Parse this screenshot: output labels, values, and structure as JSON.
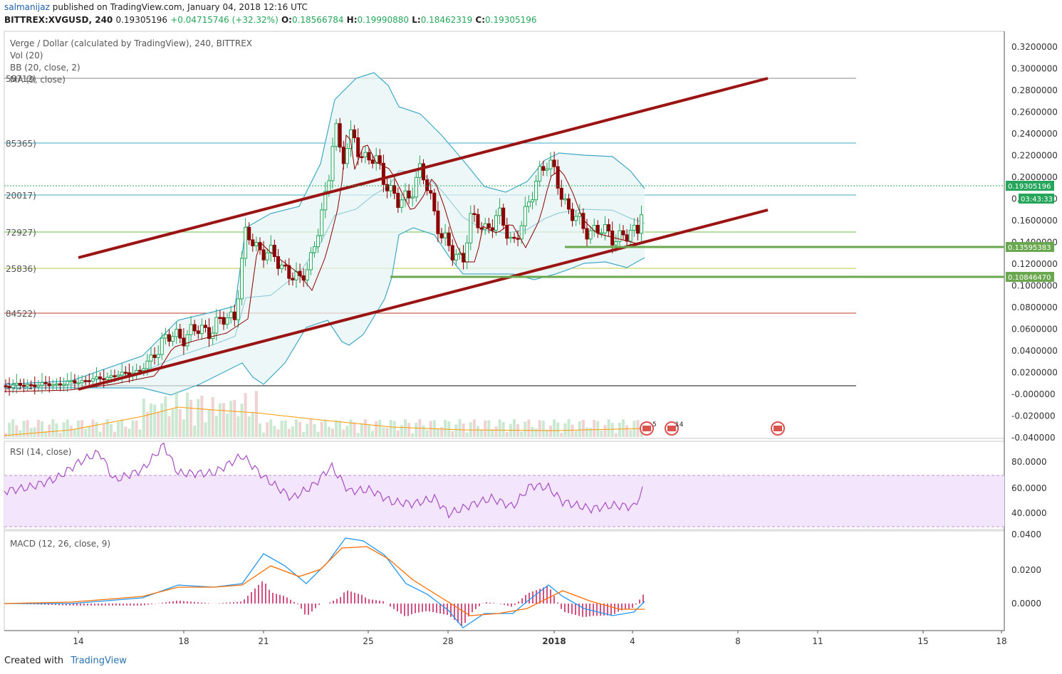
{
  "header": {
    "user": "salmanijaz",
    "published": "published on TradingView.com, January 04, 2018 12:16 UTC",
    "symbol": "BITTREX:XVGUSD, 240",
    "price": "0.19305196",
    "change": "+0.04715746 (+32.32%)",
    "o_label": "O:",
    "o": "0.18566784",
    "h_label": "H:",
    "h": "0.19990880",
    "l_label": "L:",
    "l": "0.18462319",
    "c_label": "C:",
    "c": "0.19305196"
  },
  "legend": {
    "title": "Verge / Dollar (calculated by TradingView), 240, BITTREX",
    "vol": "Vol (20)",
    "bb": "BB (20, close, 2)",
    "ma": "MA (9, close)"
  },
  "fib_labels": [
    "55712)",
    "85365)",
    "20017)",
    "72927)",
    "25836)",
    "84522)",
    "90341)"
  ],
  "price_axis": [
    "0.3200000",
    "0.3000000",
    "0.2800000",
    "0.2600000",
    "0.2400000",
    "0.2200000",
    "0.2000000",
    "0.1800000",
    "0.1600000",
    "0.1400000",
    "0.1200000",
    "0.1000000",
    "0.0800000",
    "0.0600000",
    "0.0400000",
    "0.0200000",
    "-0.000000",
    "-0.020000",
    "-0.040000"
  ],
  "price_tags": {
    "current": "0.19305196",
    "countdown": "03:43:33",
    "support1": "0.13595383",
    "support2": "0.10846470"
  },
  "rsi": {
    "title": "RSI (14, close)",
    "axis": [
      "80.0000",
      "60.0000",
      "40.0000"
    ]
  },
  "macd": {
    "title": "MACD (12, 26, close, 9)",
    "axis": [
      "0.0400",
      "0.0200",
      "0.0000"
    ]
  },
  "time_axis": [
    "14",
    "18",
    "21",
    "25",
    "28",
    "2018",
    "4",
    "8",
    "11",
    "15",
    "18"
  ],
  "events": [
    "5",
    "14"
  ],
  "footer": {
    "created": "Created with",
    "brand": "TradingView"
  },
  "colors": {
    "up": "#26a65b",
    "down": "#8b0000",
    "channel": "#9b1414",
    "bb": "#3fa9c6",
    "ma": "#8b0000",
    "rsi": "#a64dc4",
    "macd": "#2196f3",
    "signal": "#ff6d00",
    "hist": "#c2185b"
  },
  "chart_data": [
    {
      "type": "candlestick",
      "title": "Verge / Dollar (calculated by TradingView), 240, BITTREX",
      "ylim": [
        -0.04,
        0.32
      ],
      "x": [
        "14",
        "18",
        "21",
        "25",
        "28",
        "2018",
        "4"
      ],
      "close_approx": [
        0.005,
        0.06,
        0.15,
        0.25,
        0.12,
        0.19,
        0.193
      ],
      "support_levels": [
        0.13595383,
        0.1084647
      ],
      "last_close": 0.19305196
    },
    {
      "type": "line",
      "title": "RSI (14, close)",
      "ylim": [
        30,
        95
      ],
      "x": [
        "14",
        "18",
        "21",
        "25",
        "28",
        "2018",
        "4"
      ],
      "values": [
        55,
        70,
        62,
        60,
        40,
        62,
        60
      ]
    },
    {
      "type": "line",
      "title": "MACD (12, 26, close, 9)",
      "ylim": [
        -0.02,
        0.04
      ],
      "x": [
        "14",
        "18",
        "21",
        "25",
        "28",
        "2018",
        "4"
      ],
      "series": [
        {
          "name": "MACD",
          "values": [
            0.0,
            0.012,
            0.027,
            0.037,
            -0.012,
            0.012,
            -0.002
          ]
        },
        {
          "name": "Signal",
          "values": [
            0.0,
            0.009,
            0.022,
            0.033,
            -0.008,
            0.008,
            -0.005
          ]
        }
      ]
    }
  ]
}
